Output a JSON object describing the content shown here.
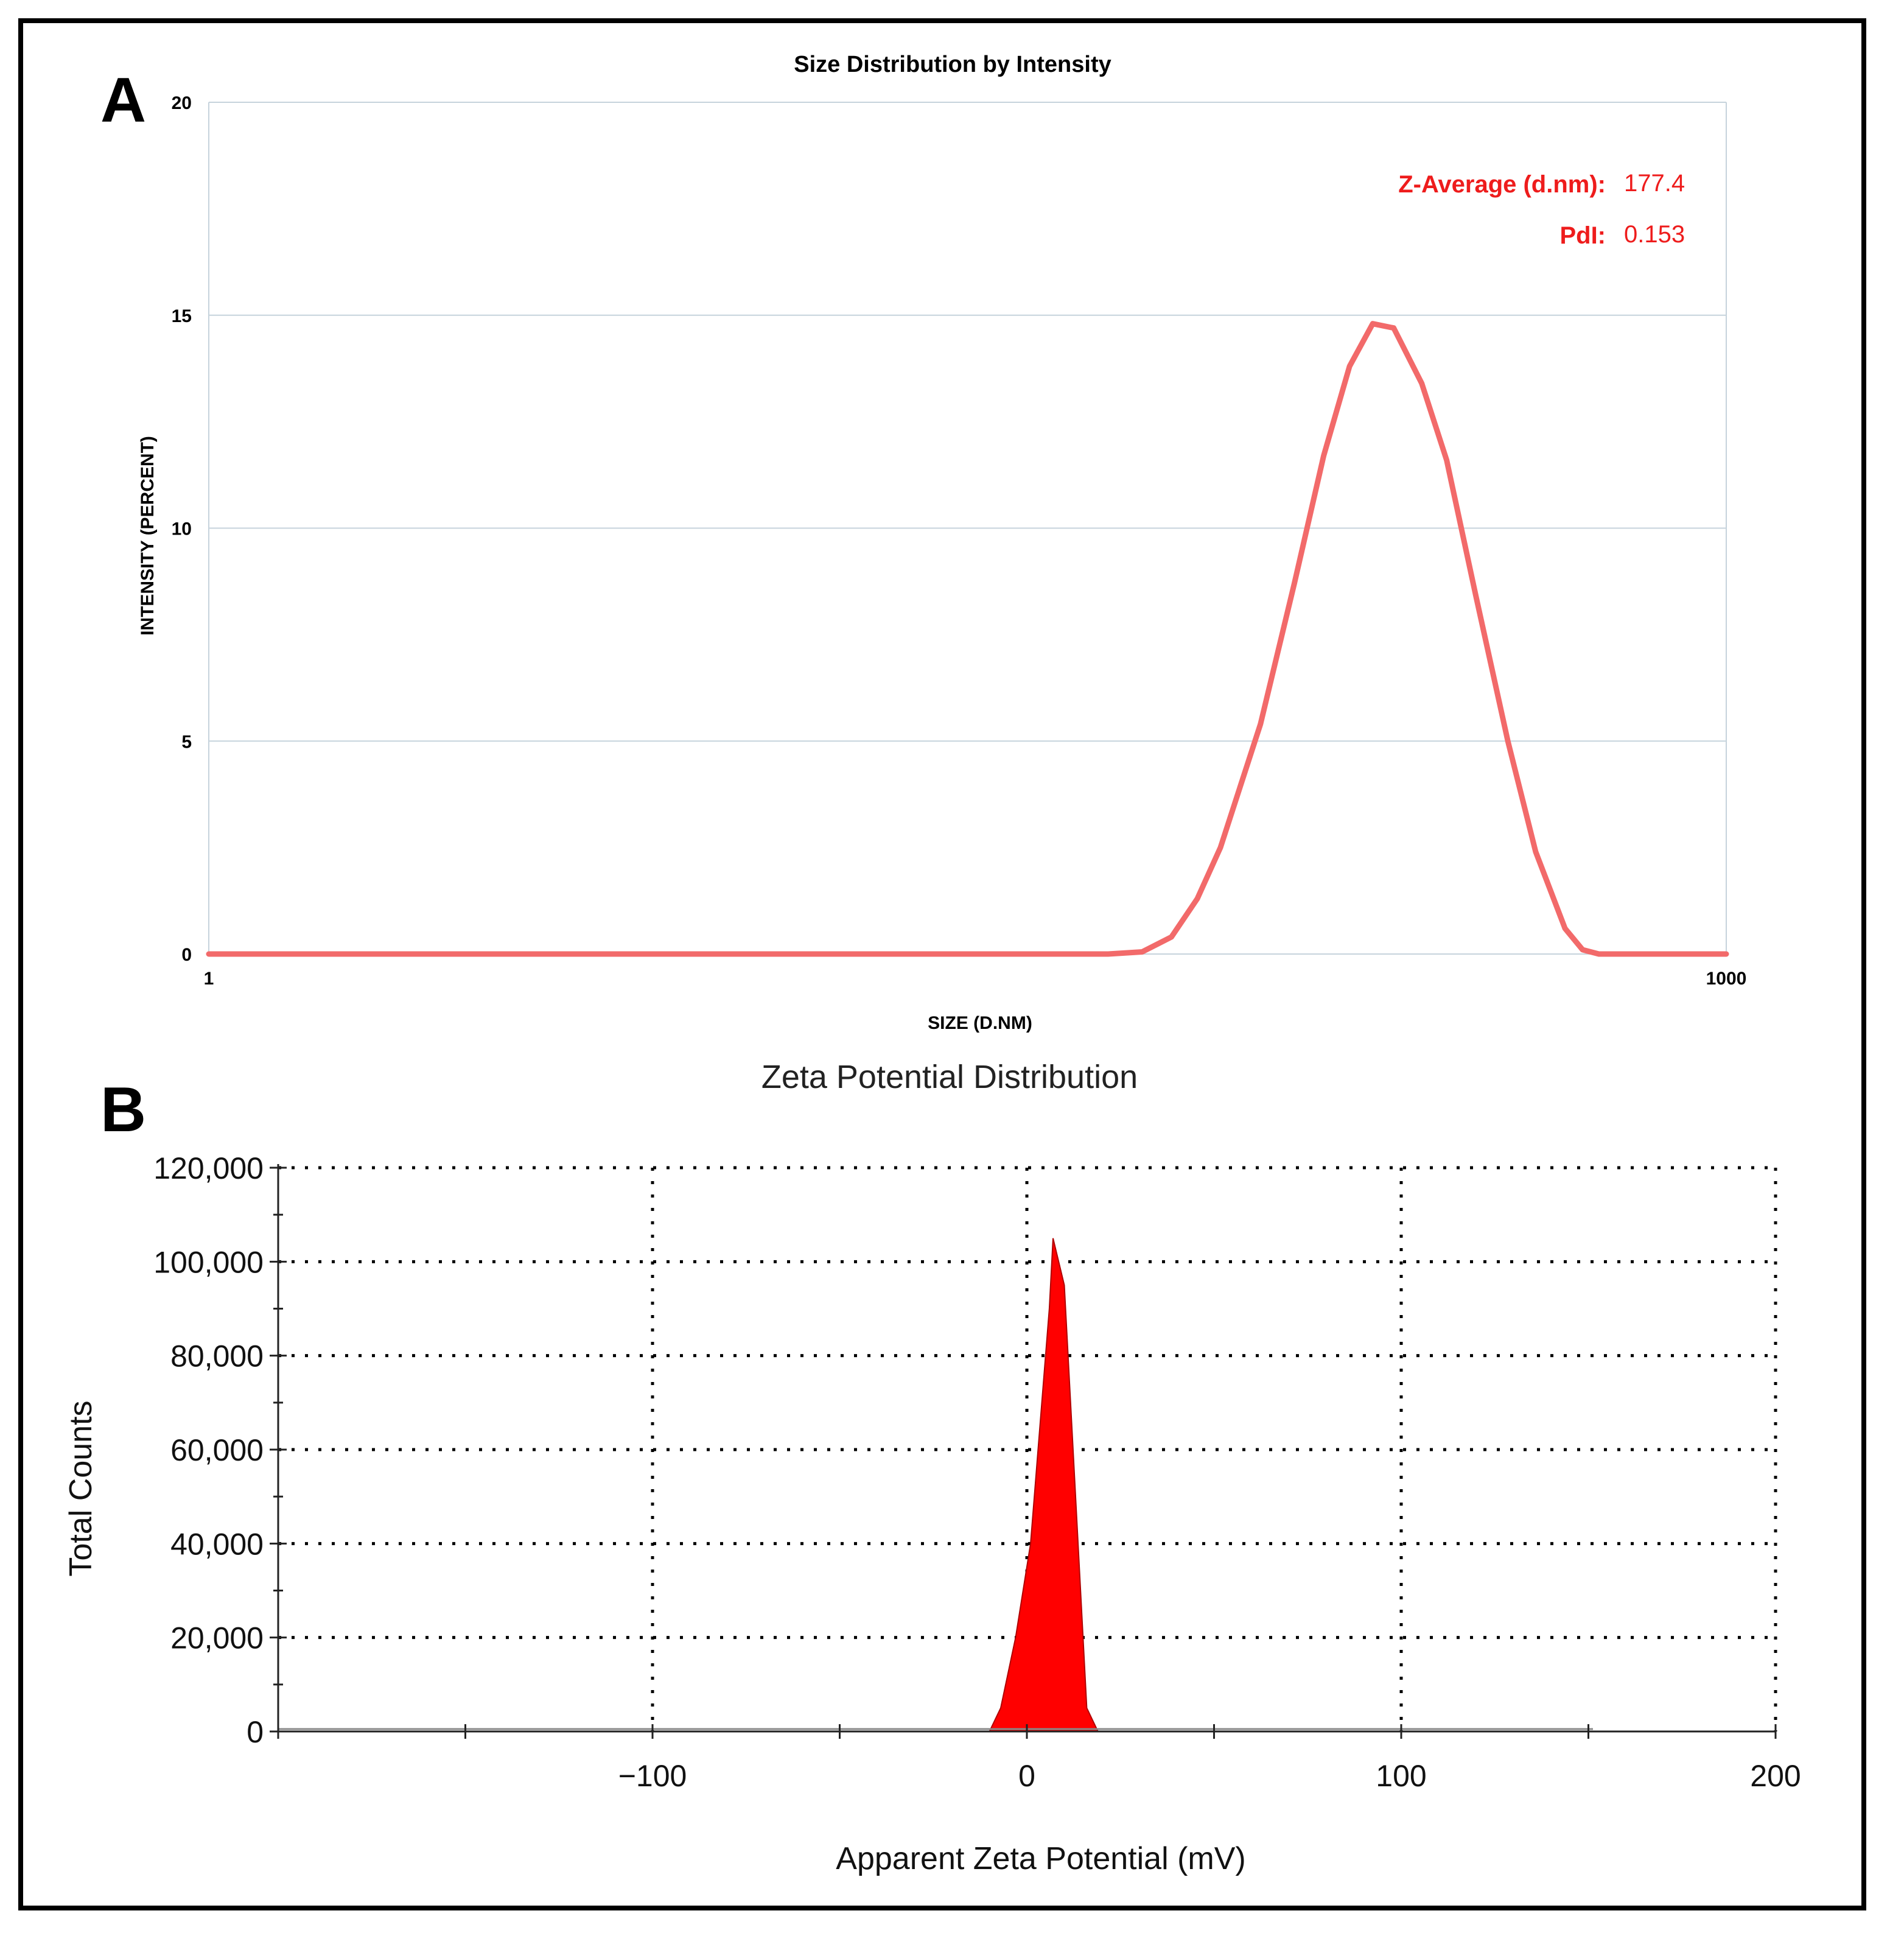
{
  "panels": {
    "a_letter": "A",
    "b_letter": "B"
  },
  "chart_data": [
    {
      "type": "line",
      "id": "size-distribution",
      "title": "Size Distribution by Intensity",
      "xlabel": "SIZE (D.NM)",
      "ylabel": "INTENSITY (PERCENT)",
      "x_scale": "log",
      "xlim": [
        1,
        1000
      ],
      "ylim": [
        0,
        20
      ],
      "x_tick_labels": [
        "1",
        "1000"
      ],
      "x_ticks": [
        1,
        1000
      ],
      "y_ticks": [
        0,
        5,
        10,
        15,
        20
      ],
      "y_tick_labels": [
        "0",
        "5",
        "10",
        "15",
        "20"
      ],
      "grid": true,
      "color": "#f26a6a",
      "annotations": [
        {
          "label": "Z-Average (d.nm):",
          "value": "177.4"
        },
        {
          "label": "PdI:",
          "value": "0.153"
        }
      ],
      "annotation_color": "#ee1c1c",
      "series": [
        {
          "name": "Intensity",
          "x": [
            1,
            3,
            10,
            30,
            50,
            60,
            70,
            80,
            90,
            100,
            120,
            140,
            160,
            180,
            200,
            220,
            250,
            280,
            320,
            370,
            420,
            480,
            520,
            560,
            600,
            650,
            700,
            800,
            1000
          ],
          "y": [
            0,
            0,
            0,
            0,
            0,
            0,
            0.05,
            0.4,
            1.3,
            2.5,
            5.4,
            8.7,
            11.7,
            13.8,
            14.8,
            14.7,
            13.4,
            11.6,
            8.4,
            5.0,
            2.4,
            0.6,
            0.1,
            0,
            0,
            0,
            0,
            0,
            0
          ]
        }
      ]
    },
    {
      "type": "area",
      "id": "zeta-potential",
      "title": "Zeta Potential Distribution",
      "xlabel": "Apparent Zeta Potential (mV)",
      "ylabel": "Total Counts",
      "xlim": [
        -200,
        200
      ],
      "ylim": [
        0,
        120000
      ],
      "x_ticks": [
        -100,
        0,
        100,
        200
      ],
      "x_tick_labels": [
        "−100",
        "0",
        "100",
        "200"
      ],
      "y_ticks": [
        0,
        20000,
        40000,
        60000,
        80000,
        100000,
        120000
      ],
      "y_tick_labels": [
        "0",
        "20,000",
        "40,000",
        "60,000",
        "80,000",
        "100,000",
        "120,000"
      ],
      "grid": "dotted",
      "color": "#ff0000",
      "series": [
        {
          "name": "Total Counts",
          "x": [
            -10,
            -7,
            -3,
            1,
            3,
            6,
            7,
            10,
            13,
            16,
            19
          ],
          "y": [
            0,
            5000,
            20000,
            40000,
            60000,
            90000,
            105000,
            95000,
            50000,
            5000,
            0
          ]
        }
      ]
    }
  ]
}
